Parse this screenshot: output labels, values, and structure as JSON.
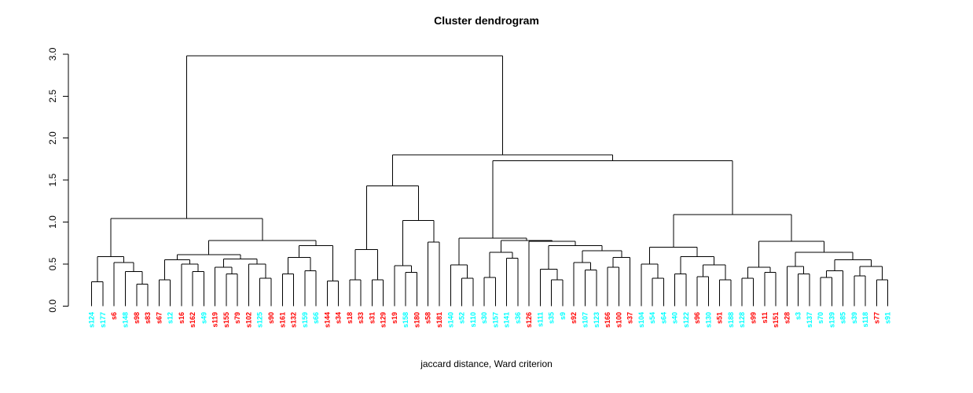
{
  "page": {
    "background": "#ffffff"
  },
  "chart_data": {
    "type": "dendrogram",
    "title": "Cluster dendrogram",
    "xlabel": "jaccard distance, Ward criterion",
    "ylabel": "",
    "ylim": [
      0,
      3.0
    ],
    "yticks": [
      0,
      0.5,
      1.0,
      1.5,
      2.0,
      2.5,
      3.0
    ],
    "ytick_labels": [
      "0.0",
      "0.5",
      "1.0",
      "1.5",
      "2.0",
      "2.5",
      "3.0"
    ],
    "grid": false,
    "legend": "none",
    "line_color": "#000000",
    "label_colors": {
      "red": "#FF0000",
      "cyan": "#00FFFF"
    },
    "root_height": 2.98,
    "leaves": [
      [
        "s124",
        "cyan"
      ],
      [
        "s177",
        "cyan"
      ],
      [
        "s6",
        "red"
      ],
      [
        "s148",
        "cyan"
      ],
      [
        "s98",
        "red"
      ],
      [
        "s83",
        "red"
      ],
      [
        "s67",
        "red"
      ],
      [
        "s12",
        "cyan"
      ],
      [
        "s16",
        "red"
      ],
      [
        "s162",
        "red"
      ],
      [
        "s49",
        "cyan"
      ],
      [
        "s119",
        "red"
      ],
      [
        "s155",
        "red"
      ],
      [
        "s79",
        "red"
      ],
      [
        "s102",
        "red"
      ],
      [
        "s125",
        "cyan"
      ],
      [
        "s90",
        "red"
      ],
      [
        "s161",
        "red"
      ],
      [
        "s132",
        "red"
      ],
      [
        "s159",
        "cyan"
      ],
      [
        "s66",
        "cyan"
      ],
      [
        "s144",
        "red"
      ],
      [
        "s34",
        "red"
      ],
      [
        "s18",
        "red"
      ],
      [
        "s33",
        "red"
      ],
      [
        "s31",
        "red"
      ],
      [
        "s129",
        "red"
      ],
      [
        "s19",
        "red"
      ],
      [
        "s158",
        "cyan"
      ],
      [
        "s180",
        "red"
      ],
      [
        "s58",
        "red"
      ],
      [
        "s181",
        "red"
      ],
      [
        "s140",
        "cyan"
      ],
      [
        "s52",
        "cyan"
      ],
      [
        "s110",
        "cyan"
      ],
      [
        "s30",
        "cyan"
      ],
      [
        "s157",
        "cyan"
      ],
      [
        "s141",
        "cyan"
      ],
      [
        "s36",
        "cyan"
      ],
      [
        "s126",
        "red"
      ],
      [
        "s111",
        "cyan"
      ],
      [
        "s35",
        "cyan"
      ],
      [
        "s9",
        "cyan"
      ],
      [
        "s92",
        "red"
      ],
      [
        "s107",
        "cyan"
      ],
      [
        "s123",
        "cyan"
      ],
      [
        "s166",
        "red"
      ],
      [
        "s100",
        "red"
      ],
      [
        "s37",
        "red"
      ],
      [
        "s104",
        "cyan"
      ],
      [
        "s54",
        "cyan"
      ],
      [
        "s64",
        "cyan"
      ],
      [
        "s40",
        "cyan"
      ],
      [
        "s122",
        "cyan"
      ],
      [
        "s96",
        "red"
      ],
      [
        "s130",
        "cyan"
      ],
      [
        "s51",
        "red"
      ],
      [
        "s188",
        "cyan"
      ],
      [
        "s128",
        "cyan"
      ],
      [
        "s99",
        "red"
      ],
      [
        "s11",
        "red"
      ],
      [
        "s151",
        "red"
      ],
      [
        "s28",
        "red"
      ],
      [
        "s3",
        "cyan"
      ],
      [
        "s137",
        "cyan"
      ],
      [
        "s70",
        "cyan"
      ],
      [
        "s139",
        "cyan"
      ],
      [
        "s85",
        "cyan"
      ],
      [
        "s39",
        "cyan"
      ],
      [
        "s118",
        "cyan"
      ],
      [
        "s77",
        "red"
      ],
      [
        "s91",
        "cyan"
      ]
    ],
    "tree": [
      2.98,
      [
        1.04,
        [
          0.59,
          [
            0.29,
            0,
            1
          ],
          [
            0.52,
            2,
            [
              0.41,
              3,
              [
                0.26,
                4,
                5
              ]
            ]
          ]
        ],
        [
          0.78,
          [
            0.61,
            [
              0.55,
              [
                0.31,
                6,
                7
              ],
              [
                0.5,
                8,
                [
                  0.41,
                  9,
                  10
                ]
              ]
            ],
            [
              0.56,
              [
                0.46,
                11,
                [
                  0.38,
                  12,
                  13
                ]
              ],
              [
                0.5,
                14,
                [
                  0.33,
                  15,
                  16
                ]
              ]
            ]
          ],
          [
            0.72,
            [
              0.58,
              [
                0.38,
                17,
                18
              ],
              [
                0.42,
                19,
                20
              ]
            ],
            [
              0.3,
              21,
              22
            ]
          ]
        ]
      ],
      [
        1.8,
        [
          1.43,
          [
            0.67,
            [
              0.31,
              23,
              24
            ],
            [
              0.31,
              25,
              26
            ]
          ],
          [
            1.02,
            [
              0.48,
              27,
              [
                0.4,
                28,
                29
              ]
            ],
            [
              0.76,
              30,
              31
            ]
          ]
        ],
        [
          1.73,
          [
            0.81,
            [
              0.49,
              32,
              [
                0.33,
                33,
                34
              ]
            ],
            [
              0.78,
              [
                0.64,
                [
                  0.34,
                  35,
                  36
                ],
                [
                  0.57,
                  37,
                  38
                ]
              ],
              [
                0.77,
                39,
                [
                  0.72,
                  [
                    0.44,
                    40,
                    [
                      0.31,
                      41,
                      42
                    ]
                  ],
                  [
                    0.66,
                    [
                      0.52,
                      43,
                      [
                        0.43,
                        44,
                        45
                      ]
                    ],
                    [
                      0.58,
                      [
                        0.46,
                        46,
                        47
                      ],
                      48
                    ]
                  ]
                ]
              ]
            ]
          ],
          [
            1.09,
            [
              0.7,
              [
                0.5,
                49,
                [
                  0.33,
                  50,
                  51
                ]
              ],
              [
                0.59,
                [
                  0.38,
                  52,
                  53
                ],
                [
                  0.49,
                  [
                    0.35,
                    54,
                    55
                  ],
                  [
                    0.31,
                    56,
                    57
                  ]
                ]
              ]
            ],
            [
              0.77,
              [
                0.46,
                [
                  0.33,
                  58,
                  59
                ],
                [
                  0.4,
                  60,
                  61
                ]
              ],
              [
                0.64,
                [
                  0.47,
                  62,
                  [
                    0.38,
                    63,
                    64
                  ]
                ],
                [
                  0.55,
                  [
                    0.42,
                    [
                      0.34,
                      65,
                      66
                    ],
                    67
                  ],
                  [
                    0.47,
                    [
                      0.36,
                      68,
                      69
                    ],
                    [
                      0.31,
                      70,
                      71
                    ]
                  ]
                ]
              ]
            ]
          ]
        ]
      ]
    ]
  }
}
